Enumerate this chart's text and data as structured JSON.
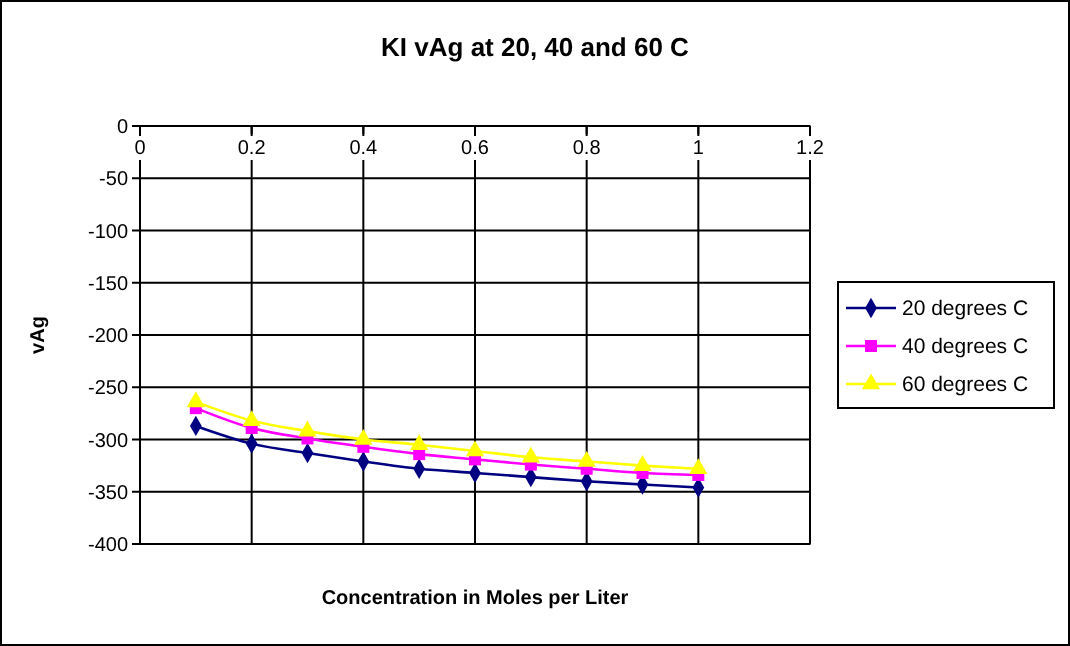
{
  "chart_data": {
    "type": "line",
    "title": "KI vAg at 20, 40 and 60 C",
    "xlabel": "Concentration in Moles per Liter",
    "ylabel": "vAg",
    "x": [
      0.1,
      0.2,
      0.3,
      0.4,
      0.5,
      0.6,
      0.7,
      0.8,
      0.9,
      1.0
    ],
    "series": [
      {
        "name": "20 degrees C",
        "color": "#000080",
        "marker": "diamond",
        "values": [
          -287,
          -304,
          -313,
          -321,
          -328,
          -332,
          -336,
          -340,
          -343,
          -346
        ]
      },
      {
        "name": "40 degrees C",
        "color": "#ff00ff",
        "marker": "square",
        "values": [
          -270,
          -289,
          -299,
          -307,
          -314,
          -319,
          -324,
          -328,
          -332,
          -334
        ]
      },
      {
        "name": "60 degrees C",
        "color": "#ffff00",
        "marker": "triangle",
        "values": [
          -264,
          -282,
          -292,
          -300,
          -305,
          -311,
          -317,
          -321,
          -325,
          -328
        ]
      }
    ],
    "xlim": [
      0,
      1.2
    ],
    "xticks": [
      0,
      0.2,
      0.4,
      0.6,
      0.8,
      1,
      1.2
    ],
    "ylim": [
      -400,
      0
    ],
    "yticks": [
      0,
      -50,
      -100,
      -150,
      -200,
      -250,
      -300,
      -350,
      -400
    ],
    "grid": true,
    "legend": "right"
  }
}
